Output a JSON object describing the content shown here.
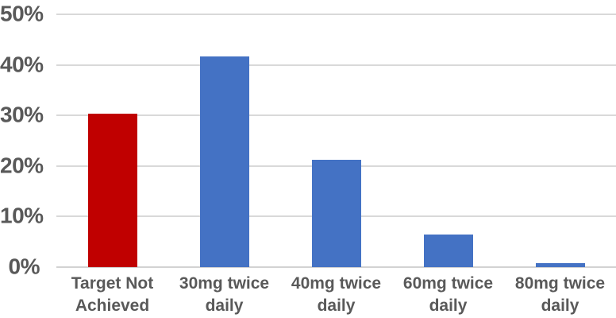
{
  "page": {
    "background_color": "#ffffff"
  },
  "chart_data": {
    "type": "bar",
    "title": "",
    "xlabel": "",
    "ylabel": "",
    "categories": [
      "Target Not Achieved",
      "30mg twice daily",
      "40mg twice daily",
      "60mg twice daily",
      "80mg twice daily"
    ],
    "values": [
      30.3,
      41.6,
      21.2,
      6.5,
      0.8
    ],
    "bar_colors": [
      "#c00000",
      "#4472c4",
      "#4472c4",
      "#4472c4",
      "#4472c4"
    ],
    "ylim": [
      0,
      50
    ],
    "yticks": [
      0,
      10,
      20,
      30,
      40,
      50
    ],
    "ytick_labels": [
      "0%",
      "10%",
      "20%",
      "30%",
      "40%",
      "50%"
    ],
    "grid": true,
    "legend": false,
    "axis_text_color": "#595959",
    "gridline_color": "#d9d9d9"
  }
}
